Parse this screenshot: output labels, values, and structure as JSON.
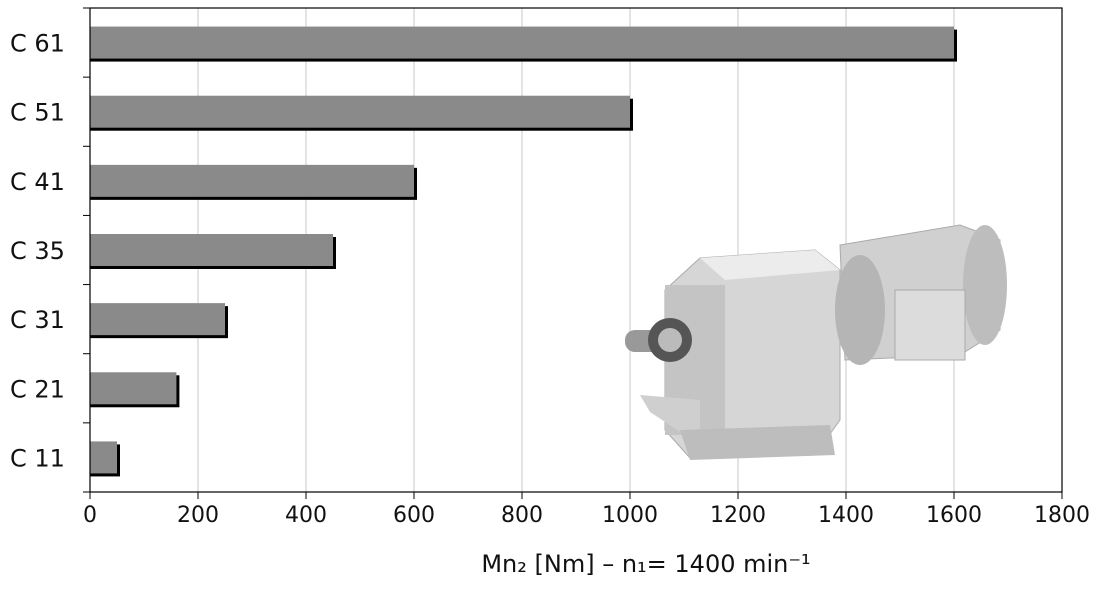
{
  "chart_data": {
    "type": "bar",
    "orientation": "horizontal",
    "categories": [
      "C 61",
      "C 51",
      "C 41",
      "C 35",
      "C 31",
      "C 21",
      "C 11"
    ],
    "values": [
      1600,
      1000,
      600,
      450,
      250,
      160,
      50
    ],
    "color": "#8a8a8a",
    "xlim": [
      0,
      1800
    ],
    "xticks": [
      0,
      200,
      400,
      600,
      800,
      1000,
      1200,
      1400,
      1600,
      1800
    ],
    "x_label": "Mn₂ [Nm] – n₁= 1400 min⁻¹",
    "grid": true
  }
}
